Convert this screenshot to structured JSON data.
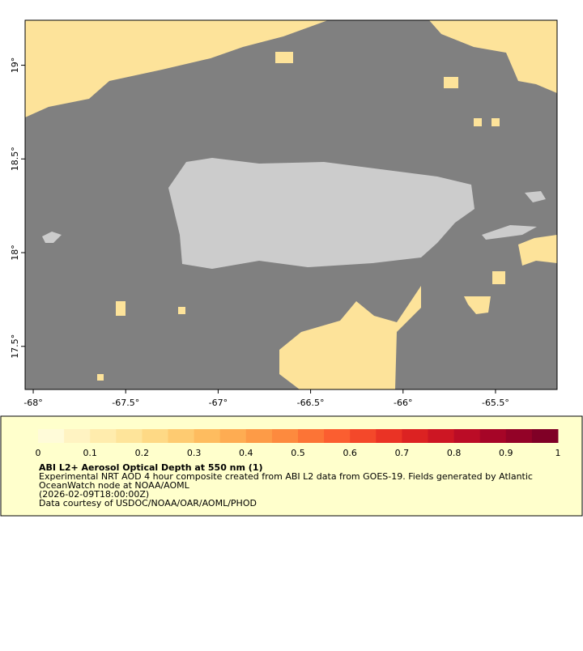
{
  "map": {
    "xlim": [
      -68.044,
      -65.167
    ],
    "ylim": [
      17.27,
      19.24
    ],
    "xticks": [
      {
        "value": -68,
        "label": "-68°"
      },
      {
        "value": -67.5,
        "label": "-67.5°"
      },
      {
        "value": -67,
        "label": "-67°"
      },
      {
        "value": -66.5,
        "label": "-66.5°"
      },
      {
        "value": -66,
        "label": "-66°"
      },
      {
        "value": -65.5,
        "label": "-65.5°"
      }
    ],
    "yticks": [
      {
        "value": 17.5,
        "label": "17.5°"
      },
      {
        "value": 18,
        "label": "18°"
      },
      {
        "value": 18.5,
        "label": "18.5°"
      },
      {
        "value": 19,
        "label": "19°"
      }
    ]
  },
  "colorbar": {
    "range": [
      0,
      1
    ],
    "ticks": [
      0,
      0.1,
      0.2,
      0.3,
      0.4,
      0.5,
      0.6,
      0.7,
      0.8,
      0.9,
      1
    ],
    "colors": [
      "#fffbd9",
      "#fff3c2",
      "#ffecad",
      "#fee49a",
      "#fed985",
      "#fecb71",
      "#febc5f",
      "#feac52",
      "#fd9b47",
      "#fd8a3e",
      "#fc7436",
      "#fb5e30",
      "#f4482a",
      "#ea3325",
      "#dc2222",
      "#cd1623",
      "#bb0c26",
      "#a60527",
      "#930227",
      "#800026"
    ]
  },
  "caption": {
    "title": "ABI L2+ Aerosol Optical Depth at 550 nm (1)",
    "lines": [
      "Experimental NRT AOD 4 hour composite created from ABI L2 data from GOES-19. Fields generated by Atlantic",
      "OceanWatch node at NOAA/AOML",
      "(2026-02-09T18:00:00Z)",
      "Data courtesy of USDOC/NOAA/OAR/AOML/PHOD"
    ]
  }
}
